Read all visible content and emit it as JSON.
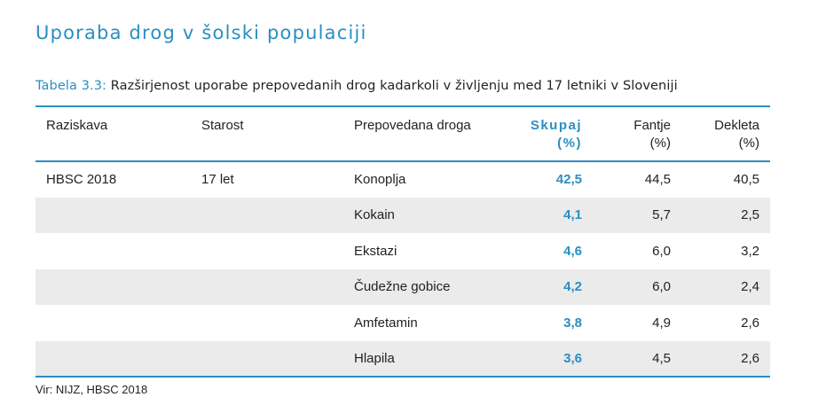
{
  "section_title": "Uporaba drog v šolski populaciji",
  "caption": {
    "prefix": "Tabela 3.3:",
    "text": "Razširjenost uporabe prepovedanih drog kadarkoli v življenju med 17 letniki v Sloveniji"
  },
  "table": {
    "headers": {
      "study": "Raziskava",
      "age": "Starost",
      "drug": "Prepovedana droga",
      "total": "Skupaj",
      "total_unit": "(%)",
      "boys": "Fantje",
      "boys_unit": "(%)",
      "girls": "Dekleta",
      "girls_unit": "(%)"
    },
    "rows": [
      {
        "study": "HBSC 2018",
        "age": "17 let",
        "drug": "Konoplja",
        "total": "42,5",
        "boys": "44,5",
        "girls": "40,5"
      },
      {
        "study": "",
        "age": "",
        "drug": "Kokain",
        "total": "4,1",
        "boys": "5,7",
        "girls": "2,5"
      },
      {
        "study": "",
        "age": "",
        "drug": "Ekstazi",
        "total": "4,6",
        "boys": "6,0",
        "girls": "3,2"
      },
      {
        "study": "",
        "age": "",
        "drug": "Čudežne gobice",
        "total": "4,2",
        "boys": "6,0",
        "girls": "2,4"
      },
      {
        "study": "",
        "age": "",
        "drug": "Amfetamin",
        "total": "3,8",
        "boys": "4,9",
        "girls": "2,6"
      },
      {
        "study": "",
        "age": "",
        "drug": "Hlapila",
        "total": "3,6",
        "boys": "4,5",
        "girls": "2,6"
      }
    ]
  },
  "source": "Vir: NIJZ, HBSC 2018",
  "colors": {
    "accent": "#2a8fc1",
    "shaded_row": "#ebebeb",
    "text": "#222222"
  }
}
